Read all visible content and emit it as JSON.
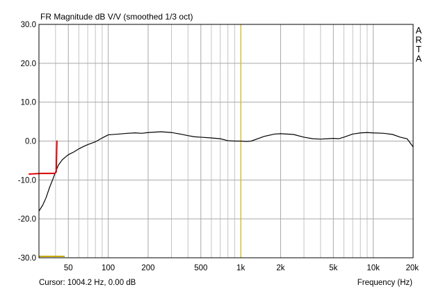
{
  "chart_data": {
    "type": "line",
    "title": "FR Magnitude dB V/V (smoothed 1/3 oct)",
    "xlabel": "Frequency (Hz)",
    "ylabel": "",
    "x_scale": "log",
    "xlim": [
      30,
      20000
    ],
    "ylim": [
      -30,
      30
    ],
    "grid": true,
    "y_ticks": [
      30,
      20,
      10,
      0,
      -10,
      -20,
      -30
    ],
    "y_tick_labels": [
      "30.0",
      "20.0",
      "10.0",
      "0.0",
      "-10.0",
      "-20.0",
      "-30.0"
    ],
    "x_ticks": [
      50,
      100,
      200,
      500,
      1000,
      2000,
      5000,
      10000,
      20000
    ],
    "x_tick_labels": [
      "50",
      "100",
      "200",
      "500",
      "1k",
      "2k",
      "5k",
      "10k",
      "20k"
    ],
    "cursor": {
      "frequency": 1004.2,
      "label": "Cursor: 1004.2 Hz, 0.00 dB"
    },
    "brand_letters": [
      "A",
      "R",
      "T",
      "A"
    ],
    "colors": {
      "curve": "#000000",
      "cursor": "#e0c000",
      "grid": "#c4c4c4",
      "annotation": "#dd0000"
    },
    "series": [
      {
        "x": [
          30,
          32,
          34,
          36,
          38,
          40,
          42,
          45,
          48,
          50,
          55,
          60,
          65,
          70,
          80,
          90,
          100,
          120,
          140,
          160,
          180,
          200,
          250,
          300,
          350,
          400,
          450,
          500,
          600,
          700,
          800,
          900,
          1000,
          1100,
          1200,
          1500,
          1800,
          2000,
          2500,
          3000,
          3500,
          4000,
          4500,
          5000,
          5500,
          6000,
          7000,
          8000,
          9000,
          10000,
          12000,
          14000,
          16000,
          18000,
          20000
        ],
        "y": [
          -18.0,
          -16.5,
          -14.5,
          -12.0,
          -10.0,
          -8.0,
          -6.2,
          -4.8,
          -4.0,
          -3.5,
          -2.8,
          -2.0,
          -1.4,
          -0.9,
          -0.2,
          0.8,
          1.6,
          1.8,
          2.0,
          2.1,
          2.0,
          2.2,
          2.4,
          2.2,
          1.8,
          1.4,
          1.1,
          1.0,
          0.8,
          0.6,
          0.1,
          0.0,
          0.0,
          -0.1,
          0.0,
          1.2,
          1.8,
          1.9,
          1.7,
          1.0,
          0.6,
          0.5,
          0.6,
          0.7,
          0.6,
          1.0,
          1.8,
          2.1,
          2.2,
          2.1,
          2.0,
          1.7,
          1.0,
          0.6,
          -1.5
        ]
      }
    ]
  },
  "footer": {
    "cursor_text": "Cursor: 1004.2 Hz, 0.00 dB",
    "xaxis_text": "Frequency (Hz)"
  }
}
